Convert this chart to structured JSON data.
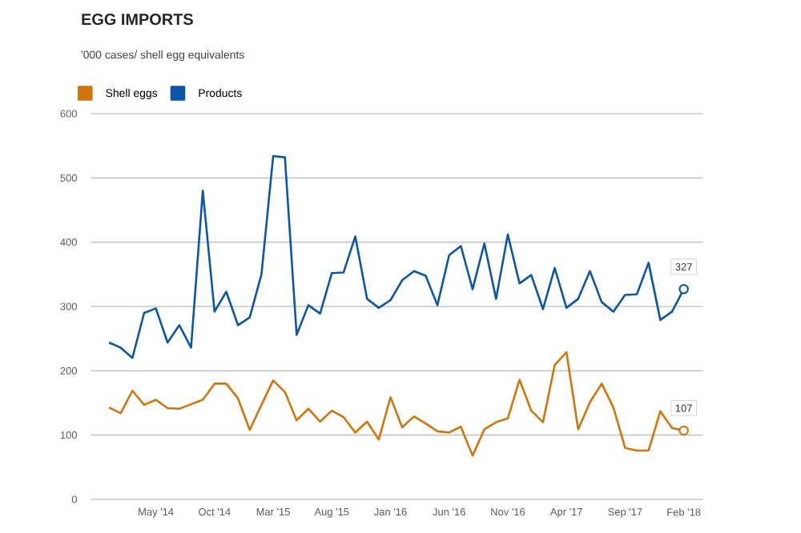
{
  "chart_data": {
    "type": "line",
    "title": "EGG IMPORTS",
    "subtitle": "'000 cases/ shell egg equivalents",
    "x": [
      "2014-01",
      "2014-02",
      "2014-03",
      "2014-04",
      "2014-05",
      "2014-06",
      "2014-07",
      "2014-08",
      "2014-09",
      "2014-10",
      "2014-11",
      "2014-12",
      "2015-01",
      "2015-02",
      "2015-03",
      "2015-04",
      "2015-05",
      "2015-06",
      "2015-07",
      "2015-08",
      "2015-09",
      "2015-10",
      "2015-11",
      "2015-12",
      "2016-01",
      "2016-02",
      "2016-03",
      "2016-04",
      "2016-05",
      "2016-06",
      "2016-07",
      "2016-08",
      "2016-09",
      "2016-10",
      "2016-11",
      "2016-12",
      "2017-01",
      "2017-02",
      "2017-03",
      "2017-04",
      "2017-05",
      "2017-06",
      "2017-07",
      "2017-08",
      "2017-09",
      "2017-10",
      "2017-11",
      "2017-12",
      "2018-01",
      "2018-02"
    ],
    "series": [
      {
        "name": "Shell eggs",
        "color": "#d2740c",
        "values": [
          143,
          134,
          169,
          147,
          155,
          142,
          141,
          148,
          155,
          180,
          180,
          157,
          108,
          147,
          185,
          167,
          123,
          141,
          121,
          138,
          128,
          104,
          121,
          93,
          159,
          112,
          129,
          118,
          106,
          104,
          113,
          68,
          109,
          120,
          126,
          186,
          138,
          120,
          209,
          229,
          109,
          151,
          180,
          143,
          80,
          76,
          76,
          137,
          111,
          107
        ]
      },
      {
        "name": "Products",
        "color": "#0b56a8",
        "values": [
          244,
          236,
          220,
          290,
          297,
          244,
          271,
          236,
          480,
          292,
          323,
          271,
          283,
          350,
          534,
          532,
          256,
          302,
          289,
          352,
          353,
          409,
          312,
          298,
          310,
          341,
          355,
          348,
          302,
          380,
          394,
          327,
          398,
          312,
          412,
          336,
          349,
          296,
          360,
          298,
          312,
          355,
          307,
          292,
          318,
          319,
          368,
          279,
          292,
          327
        ]
      }
    ],
    "annotations": [
      {
        "text": "327",
        "x": "2018-02",
        "y": 327
      },
      {
        "text": "107",
        "x": "2018-02",
        "y": 107
      }
    ],
    "xlim": [
      "2013-11-15",
      "2018-03-20"
    ],
    "xticks": [
      {
        "value": "2014-05",
        "label": "May '14"
      },
      {
        "value": "2014-10",
        "label": "Oct '14"
      },
      {
        "value": "2015-03",
        "label": "Mar '15"
      },
      {
        "value": "2015-08",
        "label": "Aug '15"
      },
      {
        "value": "2016-01",
        "label": "Jan '16"
      },
      {
        "value": "2016-06",
        "label": "Jun '16"
      },
      {
        "value": "2016-11",
        "label": "Nov '16"
      },
      {
        "value": "2017-04",
        "label": "Apr '17"
      },
      {
        "value": "2017-09",
        "label": "Sep '17"
      },
      {
        "value": "2018-02",
        "label": "Feb '18"
      }
    ],
    "ylim": [
      0,
      600
    ],
    "yticks": [
      0,
      100,
      200,
      300,
      400,
      500,
      600
    ],
    "grid": "y",
    "legend": "top left",
    "marker": "none",
    "line_style": "solid"
  }
}
